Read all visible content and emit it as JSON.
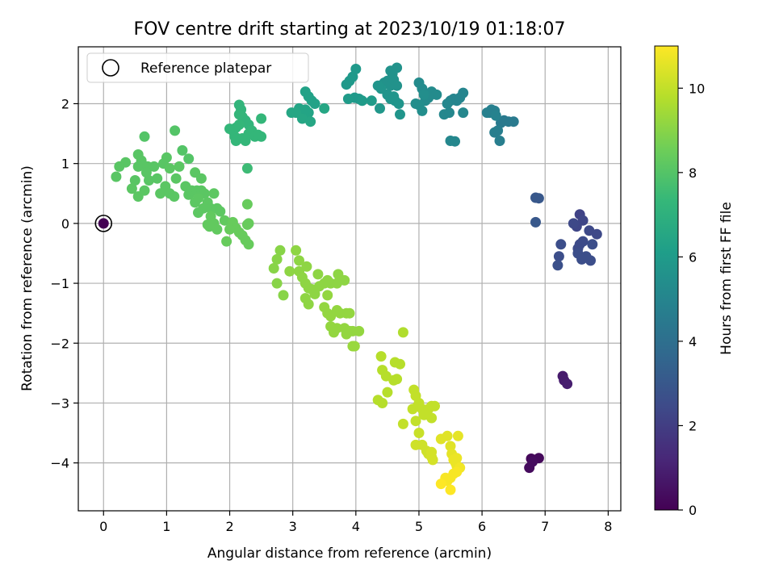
{
  "chart_data": {
    "type": "scatter",
    "title": "FOV centre drift starting at 2023/10/19 01:18:07",
    "xlabel": "Angular distance from reference (arcmin)",
    "ylabel": "Rotation from reference (arcmin)",
    "colorbar_label": "Hours from first FF file",
    "xlim": [
      -0.4,
      8.2
    ],
    "ylim": [
      -4.8,
      2.95
    ],
    "clim": [
      0,
      11
    ],
    "x_ticks": [
      0,
      1,
      2,
      3,
      4,
      5,
      6,
      7,
      8
    ],
    "y_ticks": [
      -4,
      -3,
      -2,
      -1,
      0,
      1,
      2
    ],
    "colorbar_ticks": [
      0,
      2,
      4,
      6,
      8,
      10
    ],
    "grid": true,
    "legend": {
      "position": "top-left",
      "entries": [
        "Reference platepar"
      ]
    },
    "reference_point": {
      "x": 0,
      "y": 0,
      "hours": 0
    },
    "colormap": [
      "#440154",
      "#482878",
      "#3e4a89",
      "#31688e",
      "#26828e",
      "#1f9e89",
      "#35b779",
      "#6ece58",
      "#b5de2b",
      "#fde725"
    ],
    "points": [
      [
        6.78,
        -3.93,
        0.2
      ],
      [
        6.9,
        -3.92,
        0.25
      ],
      [
        6.75,
        -4.08,
        0.3
      ],
      [
        6.8,
        -3.98,
        0.35
      ],
      [
        7.28,
        -2.55,
        0.8
      ],
      [
        7.3,
        -2.62,
        0.85
      ],
      [
        7.35,
        -2.68,
        0.9
      ],
      [
        7.55,
        0.15,
        2.2
      ],
      [
        7.6,
        0.05,
        2.3
      ],
      [
        7.5,
        -0.05,
        2.3
      ],
      [
        7.45,
        0.0,
        2.4
      ],
      [
        7.7,
        -0.12,
        2.4
      ],
      [
        7.82,
        -0.18,
        2.4
      ],
      [
        7.25,
        -0.35,
        2.6
      ],
      [
        7.22,
        -0.55,
        2.6
      ],
      [
        7.2,
        -0.7,
        2.7
      ],
      [
        7.55,
        -0.35,
        2.5
      ],
      [
        7.6,
        -0.3,
        2.5
      ],
      [
        7.52,
        -0.42,
        2.5
      ],
      [
        7.75,
        -0.35,
        2.6
      ],
      [
        7.52,
        -0.5,
        2.6
      ],
      [
        7.65,
        -0.55,
        2.6
      ],
      [
        7.58,
        -0.6,
        2.6
      ],
      [
        7.72,
        -0.62,
        2.6
      ],
      [
        6.85,
        0.43,
        3.0
      ],
      [
        6.9,
        0.42,
        3.0
      ],
      [
        6.85,
        0.02,
        3.0
      ],
      [
        6.3,
        1.68,
        4.5
      ],
      [
        6.35,
        1.72,
        4.5
      ],
      [
        6.42,
        1.7,
        4.5
      ],
      [
        6.5,
        1.7,
        4.5
      ],
      [
        6.25,
        1.55,
        4.7
      ],
      [
        6.2,
        1.52,
        4.7
      ],
      [
        6.28,
        1.38,
        4.7
      ],
      [
        6.12,
        1.85,
        4.8
      ],
      [
        6.15,
        1.9,
        4.8
      ],
      [
        6.2,
        1.88,
        4.8
      ],
      [
        6.08,
        1.85,
        4.8
      ],
      [
        6.22,
        1.8,
        4.9
      ],
      [
        5.5,
        2.05,
        5.0
      ],
      [
        5.55,
        2.08,
        5.0
      ],
      [
        5.6,
        2.05,
        5.0
      ],
      [
        5.65,
        2.1,
        5.0
      ],
      [
        5.7,
        2.18,
        5.0
      ],
      [
        5.45,
        2.0,
        5.1
      ],
      [
        5.5,
        1.38,
        5.1
      ],
      [
        5.57,
        1.37,
        5.1
      ],
      [
        5.4,
        1.82,
        5.1
      ],
      [
        5.48,
        1.85,
        5.1
      ],
      [
        5.7,
        1.85,
        5.1
      ],
      [
        5.0,
        2.35,
        5.3
      ],
      [
        5.05,
        2.25,
        5.3
      ],
      [
        5.2,
        2.2,
        5.3
      ],
      [
        5.28,
        2.15,
        5.3
      ],
      [
        5.1,
        2.05,
        5.3
      ],
      [
        5.15,
        2.1,
        5.3
      ],
      [
        5.0,
        1.98,
        5.4
      ],
      [
        5.05,
        1.88,
        5.4
      ],
      [
        4.95,
        2.0,
        5.4
      ],
      [
        5.08,
        2.15,
        5.4
      ],
      [
        4.45,
        2.35,
        5.6
      ],
      [
        4.5,
        2.38,
        5.6
      ],
      [
        4.55,
        2.3,
        5.6
      ],
      [
        4.6,
        2.4,
        5.6
      ],
      [
        4.65,
        2.3,
        5.6
      ],
      [
        4.58,
        2.5,
        5.6
      ],
      [
        4.55,
        2.55,
        5.6
      ],
      [
        4.65,
        2.6,
        5.6
      ],
      [
        4.5,
        2.15,
        5.7
      ],
      [
        4.55,
        2.08,
        5.7
      ],
      [
        4.62,
        2.05,
        5.7
      ],
      [
        4.68,
        2.0,
        5.7
      ],
      [
        4.7,
        1.82,
        5.7
      ],
      [
        4.4,
        2.25,
        5.7
      ],
      [
        4.35,
        2.3,
        5.7
      ],
      [
        4.38,
        1.92,
        5.8
      ],
      [
        4.6,
        2.12,
        5.7
      ],
      [
        3.95,
        2.45,
        5.9
      ],
      [
        4.0,
        2.58,
        5.9
      ],
      [
        3.85,
        2.32,
        5.9
      ],
      [
        3.9,
        2.38,
        5.9
      ],
      [
        3.98,
        2.1,
        5.9
      ],
      [
        4.05,
        2.08,
        5.9
      ],
      [
        3.88,
        2.08,
        6.0
      ],
      [
        4.1,
        2.05,
        6.0
      ],
      [
        4.25,
        2.05,
        6.0
      ],
      [
        3.2,
        2.2,
        6.3
      ],
      [
        3.25,
        2.12,
        6.3
      ],
      [
        3.3,
        2.05,
        6.3
      ],
      [
        3.35,
        2.0,
        6.3
      ],
      [
        3.1,
        1.92,
        6.4
      ],
      [
        3.15,
        1.88,
        6.4
      ],
      [
        3.2,
        1.85,
        6.4
      ],
      [
        3.25,
        1.85,
        6.4
      ],
      [
        3.05,
        1.85,
        6.5
      ],
      [
        2.98,
        1.85,
        6.5
      ],
      [
        3.15,
        1.75,
        6.5
      ],
      [
        3.28,
        1.7,
        6.5
      ],
      [
        3.5,
        1.92,
        6.5
      ],
      [
        3.2,
        1.9,
        6.4
      ],
      [
        2.15,
        1.98,
        7.2
      ],
      [
        2.18,
        1.9,
        7.2
      ],
      [
        2.2,
        1.78,
        7.2
      ],
      [
        2.25,
        1.72,
        7.2
      ],
      [
        2.3,
        1.65,
        7.2
      ],
      [
        2.15,
        1.65,
        7.3
      ],
      [
        2.1,
        1.6,
        7.3
      ],
      [
        2.05,
        1.55,
        7.3
      ],
      [
        2.0,
        1.58,
        7.3
      ],
      [
        2.08,
        1.45,
        7.3
      ],
      [
        2.12,
        1.42,
        7.3
      ],
      [
        2.2,
        1.42,
        7.3
      ],
      [
        2.25,
        1.38,
        7.3
      ],
      [
        2.1,
        1.38,
        7.3
      ],
      [
        2.3,
        1.5,
        7.3
      ],
      [
        2.35,
        1.55,
        7.3
      ],
      [
        2.4,
        1.45,
        7.3
      ],
      [
        2.5,
        1.45,
        7.3
      ],
      [
        2.5,
        1.75,
        7.3
      ],
      [
        2.45,
        1.48,
        7.3
      ],
      [
        2.15,
        1.82,
        7.25
      ],
      [
        2.28,
        0.92,
        7.5
      ],
      [
        0.65,
        1.45,
        8.0
      ],
      [
        1.13,
        1.55,
        8.0
      ],
      [
        1.25,
        1.22,
        8.0
      ],
      [
        1.35,
        1.08,
        8.0
      ],
      [
        1.0,
        1.1,
        8.1
      ],
      [
        0.95,
        1.0,
        8.1
      ],
      [
        0.55,
        1.15,
        8.1
      ],
      [
        0.6,
        1.05,
        8.1
      ],
      [
        0.35,
        1.02,
        8.1
      ],
      [
        0.25,
        0.95,
        8.1
      ],
      [
        0.2,
        0.78,
        8.1
      ],
      [
        0.5,
        0.72,
        8.1
      ],
      [
        0.55,
        0.95,
        8.1
      ],
      [
        0.7,
        0.95,
        8.1
      ],
      [
        0.8,
        0.95,
        8.1
      ],
      [
        0.68,
        0.85,
        8.1
      ],
      [
        0.72,
        0.72,
        8.1
      ],
      [
        0.85,
        0.75,
        8.1
      ],
      [
        0.45,
        0.58,
        8.15
      ],
      [
        0.55,
        0.45,
        8.15
      ],
      [
        0.65,
        0.55,
        8.15
      ],
      [
        0.9,
        0.5,
        8.15
      ],
      [
        0.98,
        0.62,
        8.15
      ],
      [
        1.05,
        0.5,
        8.15
      ],
      [
        1.12,
        0.45,
        8.15
      ],
      [
        1.15,
        0.75,
        8.15
      ],
      [
        1.2,
        0.95,
        8.15
      ],
      [
        1.3,
        0.62,
        8.15
      ],
      [
        1.35,
        0.48,
        8.15
      ],
      [
        1.4,
        0.55,
        8.15
      ],
      [
        1.48,
        0.55,
        8.15
      ],
      [
        1.55,
        0.55,
        8.15
      ],
      [
        1.6,
        0.5,
        8.15
      ],
      [
        1.45,
        0.85,
        8.15
      ],
      [
        1.55,
        0.75,
        8.15
      ],
      [
        1.05,
        0.92,
        8.15
      ],
      [
        1.45,
        0.35,
        8.2
      ],
      [
        1.5,
        0.42,
        8.2
      ],
      [
        1.58,
        0.25,
        8.2
      ],
      [
        1.5,
        0.18,
        8.2
      ],
      [
        1.65,
        0.35,
        8.2
      ],
      [
        1.7,
        0.25,
        8.2
      ],
      [
        1.75,
        0.5,
        8.2
      ],
      [
        1.8,
        0.25,
        8.2
      ],
      [
        1.85,
        0.2,
        8.2
      ],
      [
        1.92,
        0.05,
        8.3
      ],
      [
        1.7,
        0.12,
        8.3
      ],
      [
        1.75,
        0.0,
        8.3
      ],
      [
        1.68,
        -0.05,
        8.3
      ],
      [
        1.8,
        -0.1,
        8.3
      ],
      [
        1.65,
        -0.02,
        8.3
      ],
      [
        2.05,
        0.02,
        8.4
      ],
      [
        2.1,
        -0.08,
        8.4
      ],
      [
        2.0,
        -0.1,
        8.4
      ],
      [
        2.28,
        0.32,
        8.4
      ],
      [
        1.95,
        -0.3,
        8.4
      ],
      [
        2.2,
        -0.2,
        8.4
      ],
      [
        2.15,
        -0.15,
        8.4
      ],
      [
        2.25,
        -0.28,
        8.4
      ],
      [
        2.3,
        -0.35,
        8.4
      ],
      [
        2.3,
        0.0,
        8.4
      ],
      [
        2.28,
        -0.02,
        8.4
      ],
      [
        1.68,
        -0.05,
        8.3
      ],
      [
        2.8,
        -0.45,
        9.0
      ],
      [
        2.75,
        -0.6,
        9.0
      ],
      [
        2.7,
        -0.75,
        9.0
      ],
      [
        2.75,
        -1.0,
        9.0
      ],
      [
        2.85,
        -1.2,
        9.0
      ],
      [
        2.95,
        -0.8,
        9.1
      ],
      [
        3.05,
        -0.45,
        9.1
      ],
      [
        3.1,
        -0.62,
        9.1
      ],
      [
        3.1,
        -0.8,
        9.1
      ],
      [
        3.15,
        -0.9,
        9.1
      ],
      [
        3.2,
        -1.0,
        9.1
      ],
      [
        3.25,
        -1.08,
        9.1
      ],
      [
        3.3,
        -1.1,
        9.1
      ],
      [
        3.2,
        -1.25,
        9.1
      ],
      [
        3.25,
        -1.35,
        9.1
      ],
      [
        3.35,
        -1.18,
        9.1
      ],
      [
        3.42,
        -1.05,
        9.1
      ],
      [
        3.5,
        -1.0,
        9.1
      ],
      [
        3.55,
        -0.95,
        9.1
      ],
      [
        3.6,
        -1.0,
        9.1
      ],
      [
        3.55,
        -1.2,
        9.2
      ],
      [
        3.5,
        -1.4,
        9.2
      ],
      [
        3.55,
        -1.5,
        9.2
      ],
      [
        3.6,
        -1.55,
        9.2
      ],
      [
        3.7,
        -1.45,
        9.2
      ],
      [
        3.75,
        -1.5,
        9.2
      ],
      [
        3.85,
        -1.5,
        9.2
      ],
      [
        3.9,
        -1.5,
        9.2
      ],
      [
        3.6,
        -1.72,
        9.2
      ],
      [
        3.65,
        -1.82,
        9.2
      ],
      [
        3.7,
        -1.75,
        9.2
      ],
      [
        3.82,
        -1.75,
        9.2
      ],
      [
        3.9,
        -1.8,
        9.2
      ],
      [
        3.95,
        -1.8,
        9.2
      ],
      [
        4.05,
        -1.8,
        9.2
      ],
      [
        3.85,
        -1.85,
        9.2
      ],
      [
        3.95,
        -2.05,
        9.3
      ],
      [
        3.98,
        -2.05,
        9.3
      ],
      [
        3.7,
        -1.0,
        9.1
      ],
      [
        3.72,
        -0.85,
        9.1
      ],
      [
        3.82,
        -0.95,
        9.1
      ],
      [
        3.4,
        -0.85,
        9.1
      ],
      [
        3.22,
        -0.72,
        9.1
      ],
      [
        4.4,
        -2.22,
        9.8
      ],
      [
        4.42,
        -2.45,
        9.8
      ],
      [
        4.48,
        -2.55,
        9.8
      ],
      [
        4.62,
        -2.32,
        9.8
      ],
      [
        4.7,
        -2.35,
        9.8
      ],
      [
        4.75,
        -1.82,
        9.7
      ],
      [
        4.35,
        -2.95,
        9.8
      ],
      [
        4.42,
        -3.0,
        9.8
      ],
      [
        4.5,
        -2.82,
        9.8
      ],
      [
        4.6,
        -2.62,
        9.8
      ],
      [
        4.65,
        -2.6,
        9.8
      ],
      [
        4.92,
        -2.78,
        10.0
      ],
      [
        4.95,
        -2.88,
        10.0
      ],
      [
        4.98,
        -3.05,
        10.0
      ],
      [
        4.9,
        -3.1,
        10.0
      ],
      [
        5.0,
        -3.0,
        10.0
      ],
      [
        5.05,
        -3.1,
        10.0
      ],
      [
        5.1,
        -3.15,
        10.0
      ],
      [
        5.15,
        -3.1,
        10.0
      ],
      [
        5.2,
        -3.05,
        10.0
      ],
      [
        5.25,
        -3.05,
        10.0
      ],
      [
        5.2,
        -3.25,
        10.0
      ],
      [
        5.08,
        -3.2,
        10.0
      ],
      [
        4.95,
        -3.3,
        10.0
      ],
      [
        4.75,
        -3.35,
        10.0
      ],
      [
        5.0,
        -3.5,
        10.1
      ],
      [
        5.05,
        -3.7,
        10.2
      ],
      [
        4.95,
        -3.7,
        10.2
      ],
      [
        5.12,
        -3.8,
        10.2
      ],
      [
        5.15,
        -3.85,
        10.2
      ],
      [
        5.2,
        -3.9,
        10.3
      ],
      [
        5.22,
        -3.95,
        10.3
      ],
      [
        5.2,
        -3.82,
        10.3
      ],
      [
        5.35,
        -3.6,
        10.5
      ],
      [
        5.45,
        -3.55,
        10.5
      ],
      [
        5.5,
        -3.72,
        10.5
      ],
      [
        5.62,
        -3.55,
        10.6
      ],
      [
        5.55,
        -3.95,
        10.7
      ],
      [
        5.58,
        -4.0,
        10.7
      ],
      [
        5.6,
        -4.05,
        10.7
      ],
      [
        5.65,
        -4.08,
        10.8
      ],
      [
        5.5,
        -4.25,
        10.9
      ],
      [
        5.55,
        -4.18,
        10.9
      ],
      [
        5.6,
        -4.15,
        10.9
      ],
      [
        5.45,
        -4.3,
        10.9
      ],
      [
        5.35,
        -4.35,
        11.0
      ],
      [
        5.5,
        -4.45,
        11.0
      ],
      [
        5.52,
        -3.85,
        10.6
      ],
      [
        5.42,
        -4.25,
        10.9
      ],
      [
        5.6,
        -3.92,
        10.7
      ]
    ]
  }
}
